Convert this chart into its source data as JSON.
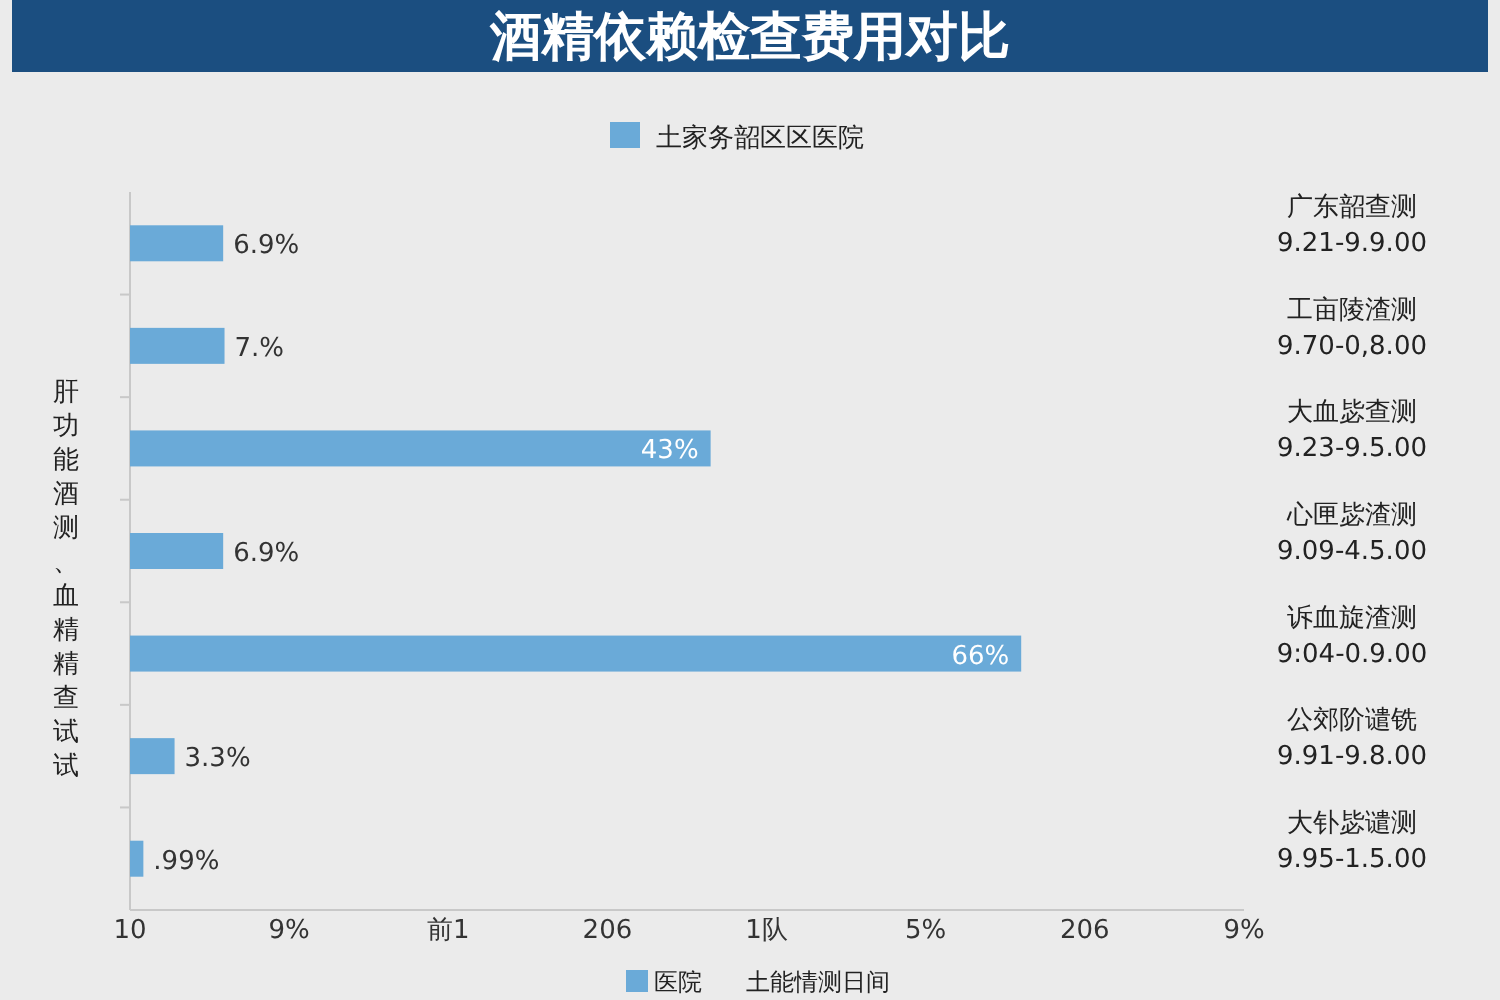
{
  "chart_data": {
    "type": "bar",
    "orientation": "horizontal",
    "title": "酒精依赖检查费用对比",
    "xlabel": null,
    "ylabel": "肝功能酒测、血精精查试试",
    "categories": [
      "广东韶查测\n9.21-9.9.00",
      "工亩陵渣测\n9.70-0,8.00",
      "大血毖查测\n9.23-9.5.00",
      "心匣毖渣测\n9.09-4.5.00",
      "诉血旋渣测\n9:04-0.9.00",
      "公郊阶谴铣\n9.91-9.8.00",
      "大钋毖谴测\n9.95-1.5.00"
    ],
    "series": [
      {
        "name": "土家务韶区区医院",
        "color": "#6aaad8",
        "values": [
          6.9,
          7,
          43,
          6.9,
          66,
          3.3,
          0.99
        ],
        "value_labels": [
          "6.9%",
          "7.%",
          "43%",
          "6.9%",
          "66%",
          "3.3%",
          ".99%"
        ]
      }
    ],
    "legend": "top",
    "annotations": [
      "10",
      "9%",
      "前1",
      "206",
      "1队",
      "5%",
      "206",
      "9%",
      "医院",
      "土能情测日间"
    ]
  }
}
